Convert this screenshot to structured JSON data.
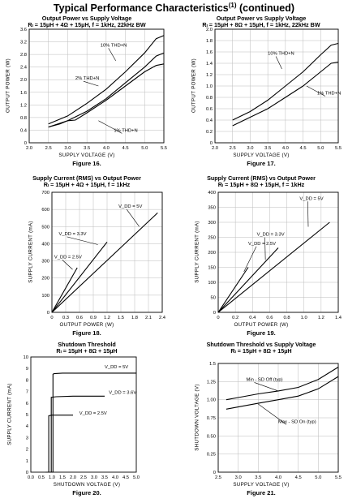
{
  "page": {
    "title": "Typical Performance Characteristics",
    "title_sup": "(1)",
    "title_suffix": " (continued)"
  },
  "chart_data": [
    {
      "id": "fig16",
      "type": "line",
      "title": "Output Power vs Supply Voltage",
      "subtitle": "Rₗ = 15µH + 4Ω + 15µH, f = 1kHz, 22kHz BW",
      "xlabel": "SUPPLY VOLTAGE (V)",
      "ylabel": "OUTPUT POWER (W)",
      "caption": "Figure 16.",
      "xlim": [
        2.0,
        5.5
      ],
      "ylim": [
        0,
        3.6
      ],
      "xticks": [
        "2.0",
        "2.5",
        "3.0",
        "3.5",
        "4.0",
        "4.5",
        "5.0",
        "5.5"
      ],
      "yticks": [
        "0",
        "0.4",
        "0.8",
        "1.2",
        "1.6",
        "2.0",
        "2.4",
        "2.8",
        "3.2",
        "3.6"
      ],
      "grid": true,
      "series": [
        {
          "name": "10% THD+N",
          "x": [
            2.5,
            3.0,
            3.5,
            4.0,
            4.5,
            5.0,
            5.3,
            5.5
          ],
          "y": [
            0.6,
            0.85,
            1.25,
            1.7,
            2.25,
            2.85,
            3.3,
            3.4
          ]
        },
        {
          "name": "2% THD+N",
          "x": [
            2.5,
            3.0,
            3.5,
            4.0,
            4.5,
            5.0,
            5.3,
            5.5
          ],
          "y": [
            0.5,
            0.7,
            1.0,
            1.4,
            1.9,
            2.4,
            2.75,
            2.85
          ]
        },
        {
          "name": "1% THD+N",
          "x": [
            2.5,
            2.8,
            3.0,
            3.2,
            3.5,
            4.0,
            4.5,
            5.0,
            5.3,
            5.5
          ],
          "y": [
            0.5,
            0.6,
            0.7,
            0.72,
            0.95,
            1.35,
            1.8,
            2.25,
            2.45,
            2.5
          ]
        }
      ],
      "annotations": [
        "10% THD+N",
        "2% THD+N",
        "1% THD+N"
      ]
    },
    {
      "id": "fig17",
      "type": "line",
      "title": "Output Power vs Supply Voltage",
      "subtitle": "Rₗ = 15µH + 8Ω + 15µH, f = 1kHz, 22kHz BW",
      "xlabel": "SUPPLY VOLTAGE (V)",
      "ylabel": "OUTPUT POWER (W)",
      "caption": "Figure 17.",
      "xlim": [
        2.0,
        5.5
      ],
      "ylim": [
        0,
        2.0
      ],
      "xticks": [
        "2.0",
        "2.5",
        "3.0",
        "3.5",
        "4.0",
        "4.5",
        "5.0",
        "5.5"
      ],
      "yticks": [
        "0",
        "0.2",
        "0.4",
        "0.6",
        "0.8",
        "1.0",
        "1.2",
        "1.4",
        "1.6",
        "1.8",
        "2.0"
      ],
      "grid": true,
      "series": [
        {
          "name": "10% THD+N",
          "x": [
            2.5,
            3.0,
            3.5,
            4.0,
            4.5,
            5.0,
            5.3,
            5.5
          ],
          "y": [
            0.4,
            0.55,
            0.75,
            1.0,
            1.25,
            1.55,
            1.72,
            1.75
          ]
        },
        {
          "name": "1% THD+N",
          "x": [
            2.5,
            3.0,
            3.5,
            4.0,
            4.5,
            5.0,
            5.3,
            5.5
          ],
          "y": [
            0.3,
            0.45,
            0.6,
            0.8,
            1.0,
            1.25,
            1.4,
            1.42
          ]
        }
      ],
      "annotations": [
        "10% THD+N",
        "1% THD+N"
      ]
    },
    {
      "id": "fig18",
      "type": "line",
      "title": "Supply Current (RMS) vs Output Power",
      "subtitle": "Rₗ = 15µH + 4Ω + 15µH, f = 1kHz",
      "xlabel": "OUTPUT POWER (W)",
      "ylabel": "SUPPLY CURRENT (mA)",
      "caption": "Figure 18.",
      "xlim": [
        0,
        2.4
      ],
      "ylim": [
        0,
        700
      ],
      "xticks": [
        "0",
        "0.3",
        "0.6",
        "0.9",
        "1.2",
        "1.5",
        "1.8",
        "2.1",
        "2.4"
      ],
      "yticks": [
        "0",
        "100",
        "200",
        "300",
        "400",
        "500",
        "600",
        "700"
      ],
      "grid": true,
      "series": [
        {
          "name": "V_DD = 5V",
          "x": [
            0,
            2.3
          ],
          "y": [
            0,
            580
          ]
        },
        {
          "name": "V_DD = 3.3V",
          "x": [
            0,
            1.2
          ],
          "y": [
            0,
            410
          ]
        },
        {
          "name": "V_DD = 2.5V",
          "x": [
            0,
            0.55
          ],
          "y": [
            0,
            260
          ]
        }
      ],
      "annotations": [
        "V_DD = 5V",
        "V_DD = 3.3V",
        "V_DD = 2.5V"
      ]
    },
    {
      "id": "fig19",
      "type": "line",
      "title": "Supply Current (RMS) vs Output Power",
      "subtitle": "Rₗ = 15µH + 8Ω + 15µH, f = 1kHz",
      "xlabel": "OUTPUT POWER (W)",
      "ylabel": "SUPPLY CURRENT (mA)",
      "caption": "Figure 19.",
      "xlim": [
        0,
        1.4
      ],
      "ylim": [
        0,
        400
      ],
      "xticks": [
        "0",
        "0.2",
        "0.4",
        "0.6",
        "0.8",
        "1.0",
        "1.2",
        "1.4"
      ],
      "yticks": [
        "0",
        "50",
        "100",
        "150",
        "200",
        "250",
        "300",
        "350",
        "400"
      ],
      "grid": true,
      "series": [
        {
          "name": "V_DD = 5V",
          "x": [
            0,
            1.3
          ],
          "y": [
            0,
            300
          ]
        },
        {
          "name": "V_DD = 3.3V",
          "x": [
            0,
            0.7
          ],
          "y": [
            0,
            215
          ]
        },
        {
          "name": "V_DD = 2.5V",
          "x": [
            0,
            0.35
          ],
          "y": [
            0,
            150
          ]
        }
      ],
      "annotations": [
        "V_DD = 5V",
        "V_DD = 3.3V",
        "V_DD = 2.5V"
      ]
    },
    {
      "id": "fig20",
      "type": "line",
      "title": "Shutdown Threshold",
      "subtitle": "Rₗ = 15µH + 8Ω + 15µH",
      "xlabel": "SHUTDOWN VOLTAGE (V)",
      "ylabel": "SUPPLY CURRENT (mA)",
      "caption": "Figure 20.",
      "xlim": [
        0,
        5.0
      ],
      "ylim": [
        0,
        10
      ],
      "xticks": [
        "0.0",
        "0.5",
        "1.0",
        "1.5",
        "2.0",
        "2.5",
        "3.0",
        "3.5",
        "4.0",
        "4.5",
        "5.0"
      ],
      "yticks": [
        "0",
        "1",
        "2",
        "3",
        "4",
        "5",
        "6",
        "7",
        "8",
        "9",
        "10"
      ],
      "grid": false,
      "series": [
        {
          "name": "V_DD = 5V",
          "x": [
            0.8,
            1.0,
            1.05,
            1.05,
            1.1,
            1.5,
            2.0,
            3.0,
            4.0,
            5.0
          ],
          "y": [
            0,
            0,
            0,
            8.5,
            8.55,
            8.6,
            8.6,
            8.6,
            8.6,
            8.6
          ]
        },
        {
          "name": "V_DD = 3.6V",
          "x": [
            0.8,
            0.92,
            0.97,
            0.97,
            1.2,
            2.0,
            3.0,
            3.5
          ],
          "y": [
            0,
            0,
            0,
            6.5,
            6.55,
            6.6,
            6.6,
            6.6
          ]
        },
        {
          "name": "V_DD = 2.5V",
          "x": [
            0.7,
            0.8,
            0.85,
            0.85,
            1.0,
            1.5,
            2.0
          ],
          "y": [
            0,
            0,
            0,
            4.9,
            4.95,
            4.95,
            4.95
          ]
        }
      ],
      "annotations": [
        "V_DD = 5V",
        "V_DD = 3.6V",
        "V_DD = 2.5V"
      ]
    },
    {
      "id": "fig21",
      "type": "line",
      "title": "Shutdown Threshold vs Supply Voltage",
      "subtitle": "Rₗ = 15µH + 8Ω + 15µH",
      "xlabel": "SUPPLY VOLTAGE (V)",
      "ylabel": "SHUTDOWN VOLTAGE (V)",
      "caption": "Figure 21.",
      "xlim": [
        2.5,
        5.5
      ],
      "ylim": [
        0,
        1.5
      ],
      "xticks": [
        "2.5",
        "3.0",
        "3.5",
        "4.0",
        "4.5",
        "5.0",
        "5.5"
      ],
      "yticks": [
        "0",
        "0.25",
        "0.50",
        "0.75",
        "1.00",
        "1.25",
        "1.5"
      ],
      "grid": true,
      "series": [
        {
          "name": "Min - SD Off (typ)",
          "x": [
            2.7,
            3.0,
            3.5,
            4.0,
            4.5,
            5.0,
            5.5
          ],
          "y": [
            1.0,
            1.03,
            1.08,
            1.12,
            1.17,
            1.28,
            1.45
          ]
        },
        {
          "name": "Max - SD On (typ)",
          "x": [
            2.7,
            3.0,
            3.5,
            4.0,
            4.5,
            5.0,
            5.5
          ],
          "y": [
            0.87,
            0.9,
            0.95,
            1.0,
            1.05,
            1.15,
            1.32
          ]
        }
      ],
      "annotations": [
        "Min - SD Off (typ)",
        "Max - SD On (typ)"
      ]
    }
  ]
}
